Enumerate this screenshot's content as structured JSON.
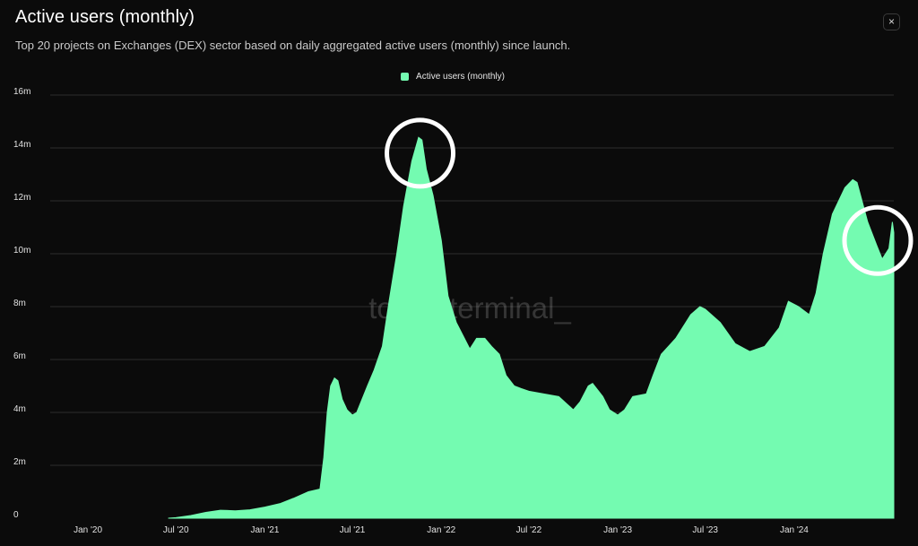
{
  "header": {
    "title": "Active users (monthly)",
    "subtitle": "Top 20 projects on Exchanges (DEX) sector based on daily aggregated active users (monthly) since launch.",
    "close_icon": "close-icon",
    "close_label": "×"
  },
  "watermark": "token terminal_",
  "colors": {
    "background": "#0b0b0b",
    "series": "#74fbb1",
    "grid": "#2c2c2c",
    "annotation": "#ffffff"
  },
  "chart_data": {
    "type": "area",
    "legend": {
      "position": "top-center"
    },
    "grid": true,
    "series": [
      {
        "name": "Active users (monthly)",
        "points": [
          [
            "2020-06-15",
            0
          ],
          [
            "2020-07-01",
            0.02
          ],
          [
            "2020-08-01",
            0.1
          ],
          [
            "2020-09-01",
            0.22
          ],
          [
            "2020-10-01",
            0.3
          ],
          [
            "2020-11-01",
            0.28
          ],
          [
            "2020-12-01",
            0.32
          ],
          [
            "2021-01-01",
            0.42
          ],
          [
            "2021-02-01",
            0.55
          ],
          [
            "2021-03-01",
            0.75
          ],
          [
            "2021-04-01",
            1.0
          ],
          [
            "2021-04-25",
            1.1
          ],
          [
            "2021-05-03",
            2.3
          ],
          [
            "2021-05-10",
            4.0
          ],
          [
            "2021-05-17",
            5.0
          ],
          [
            "2021-05-25",
            5.3
          ],
          [
            "2021-06-01",
            5.2
          ],
          [
            "2021-06-10",
            4.5
          ],
          [
            "2021-06-20",
            4.1
          ],
          [
            "2021-07-01",
            3.9
          ],
          [
            "2021-07-10",
            4.0
          ],
          [
            "2021-08-01",
            5.0
          ],
          [
            "2021-08-15",
            5.6
          ],
          [
            "2021-09-01",
            6.5
          ],
          [
            "2021-09-15",
            8.2
          ],
          [
            "2021-10-01",
            10.0
          ],
          [
            "2021-10-15",
            11.8
          ],
          [
            "2021-11-01",
            13.5
          ],
          [
            "2021-11-15",
            14.4
          ],
          [
            "2021-11-22",
            14.3
          ],
          [
            "2021-12-01",
            13.2
          ],
          [
            "2021-12-15",
            12.2
          ],
          [
            "2022-01-01",
            10.5
          ],
          [
            "2022-01-15",
            8.4
          ],
          [
            "2022-02-01",
            7.4
          ],
          [
            "2022-02-15",
            6.9
          ],
          [
            "2022-03-01",
            6.4
          ],
          [
            "2022-03-15",
            6.8
          ],
          [
            "2022-04-01",
            6.8
          ],
          [
            "2022-04-15",
            6.5
          ],
          [
            "2022-05-01",
            6.2
          ],
          [
            "2022-05-15",
            5.4
          ],
          [
            "2022-06-01",
            5.0
          ],
          [
            "2022-06-15",
            4.9
          ],
          [
            "2022-07-01",
            4.8
          ],
          [
            "2022-08-01",
            4.7
          ],
          [
            "2022-09-01",
            4.6
          ],
          [
            "2022-10-01",
            4.1
          ],
          [
            "2022-10-15",
            4.4
          ],
          [
            "2022-11-01",
            5.0
          ],
          [
            "2022-11-10",
            5.1
          ],
          [
            "2022-12-01",
            4.6
          ],
          [
            "2022-12-15",
            4.1
          ],
          [
            "2023-01-01",
            3.9
          ],
          [
            "2023-01-15",
            4.1
          ],
          [
            "2023-02-01",
            4.6
          ],
          [
            "2023-03-01",
            4.7
          ],
          [
            "2023-03-15",
            5.4
          ],
          [
            "2023-04-01",
            6.2
          ],
          [
            "2023-05-01",
            6.8
          ],
          [
            "2023-06-01",
            7.7
          ],
          [
            "2023-06-20",
            8.0
          ],
          [
            "2023-07-01",
            7.9
          ],
          [
            "2023-08-01",
            7.4
          ],
          [
            "2023-09-01",
            6.6
          ],
          [
            "2023-10-01",
            6.3
          ],
          [
            "2023-11-01",
            6.5
          ],
          [
            "2023-12-01",
            7.2
          ],
          [
            "2023-12-20",
            8.2
          ],
          [
            "2024-01-10",
            8.0
          ],
          [
            "2024-02-01",
            7.7
          ],
          [
            "2024-02-15",
            8.5
          ],
          [
            "2024-03-01",
            10.0
          ],
          [
            "2024-03-20",
            11.5
          ],
          [
            "2024-04-15",
            12.5
          ],
          [
            "2024-05-01",
            12.8
          ],
          [
            "2024-05-10",
            12.7
          ],
          [
            "2024-06-01",
            11.2
          ],
          [
            "2024-06-20",
            10.3
          ],
          [
            "2024-07-01",
            9.8
          ],
          [
            "2024-07-15",
            10.2
          ],
          [
            "2024-07-22",
            11.2
          ],
          [
            "2024-07-25",
            10.8
          ]
        ]
      }
    ],
    "x_ticks": [
      {
        "date": "2020-01-01",
        "label": "Jan '20"
      },
      {
        "date": "2020-07-01",
        "label": "Jul '20"
      },
      {
        "date": "2021-01-01",
        "label": "Jan '21"
      },
      {
        "date": "2021-07-01",
        "label": "Jul '21"
      },
      {
        "date": "2022-01-01",
        "label": "Jan '22"
      },
      {
        "date": "2022-07-01",
        "label": "Jul '22"
      },
      {
        "date": "2023-01-01",
        "label": "Jan '23"
      },
      {
        "date": "2023-07-01",
        "label": "Jul '23"
      },
      {
        "date": "2024-01-01",
        "label": "Jan '24"
      }
    ],
    "x_range": [
      "2019-10-15",
      "2024-07-25"
    ],
    "y_ticks": [
      {
        "value": 0,
        "label": "0"
      },
      {
        "value": 2,
        "label": "2m"
      },
      {
        "value": 4,
        "label": "4m"
      },
      {
        "value": 6,
        "label": "6m"
      },
      {
        "value": 8,
        "label": "8m"
      },
      {
        "value": 10,
        "label": "10m"
      },
      {
        "value": 12,
        "label": "12m"
      },
      {
        "value": 14,
        "label": "14m"
      },
      {
        "value": 16,
        "label": "16m"
      }
    ],
    "ylim": [
      0,
      16
    ],
    "annotations": [
      {
        "type": "circle",
        "date": "2021-11-18",
        "value": 13.8
      },
      {
        "type": "circle",
        "date": "2024-07-25",
        "value": 10.5
      }
    ]
  }
}
